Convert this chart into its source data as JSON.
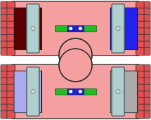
{
  "bg_color": "#ffffff",
  "fin_color": "#e05050",
  "fin_outline": "#333333",
  "cylinder_body_color": "#f4a0a0",
  "cylinder_outline": "#333333",
  "piston_color": "#b0d0d0",
  "rod_color": "#aaaaaa",
  "rod_outline": "#444444",
  "top_left_fill": "#5a0000",
  "top_right_fill": "#2222ee",
  "bot_left_fill": "#aaaaee",
  "bot_right_fill": "#b0d0d0",
  "coil_green_color": "#22bb22",
  "coil_blue_color": "#2222cc",
  "coil_white_color": "#ffffff",
  "screw_color": "#c8ddd0",
  "figsize": [
    2.2,
    1.75
  ],
  "dpi": 100
}
